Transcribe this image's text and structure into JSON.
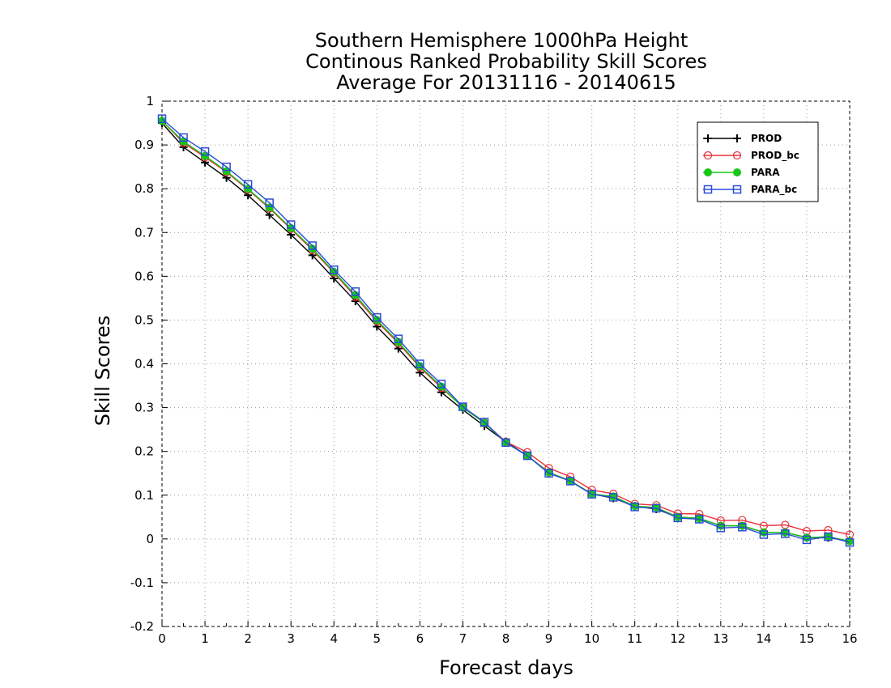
{
  "chart_data": {
    "type": "line",
    "title": [
      "Southern Hemisphere 1000hPa Height",
      "Continous Ranked Probability Skill Scores",
      "Average For 20131116 - 20140615"
    ],
    "xlabel": "Forecast days",
    "ylabel": "Skill Scores",
    "xlim": [
      0,
      16
    ],
    "ylim": [
      -0.2,
      1
    ],
    "xticks": [
      "0",
      "1",
      "2",
      "3",
      "4",
      "5",
      "6",
      "7",
      "8",
      "9",
      "10",
      "11",
      "12",
      "13",
      "14",
      "15",
      "16"
    ],
    "yticks": [
      "-0.2",
      "-0.1",
      "0",
      "0.1",
      "0.2",
      "0.3",
      "0.4",
      "0.5",
      "0.6",
      "0.7",
      "0.8",
      "0.9",
      "1"
    ],
    "grid": true,
    "legend_position": "top-right",
    "x": [
      0,
      0.5,
      1,
      1.5,
      2,
      2.5,
      3,
      3.5,
      4,
      4.5,
      5,
      5.5,
      6,
      6.5,
      7,
      7.5,
      8,
      8.5,
      9,
      9.5,
      10,
      10.5,
      11,
      11.5,
      12,
      12.5,
      13,
      13.5,
      14,
      14.5,
      15,
      15.5,
      16
    ],
    "series": [
      {
        "name": "PROD",
        "color": "#000000",
        "marker": "plus",
        "values": [
          0.95,
          0.895,
          0.86,
          0.825,
          0.785,
          0.74,
          0.695,
          0.648,
          0.595,
          0.543,
          0.485,
          0.435,
          0.38,
          0.335,
          0.295,
          0.258,
          0.222,
          0.19,
          0.152,
          0.132,
          0.103,
          0.093,
          0.075,
          0.068,
          0.05,
          0.047,
          0.03,
          0.03,
          0.015,
          0.015,
          0.003,
          0.003,
          -0.005
        ]
      },
      {
        "name": "PROD_bc",
        "color": "#e8313a",
        "marker": "circle",
        "values": [
          0.955,
          0.905,
          0.872,
          0.838,
          0.798,
          0.755,
          0.708,
          0.66,
          0.608,
          0.553,
          0.497,
          0.447,
          0.392,
          0.345,
          0.302,
          0.265,
          0.222,
          0.198,
          0.162,
          0.142,
          0.112,
          0.103,
          0.08,
          0.077,
          0.058,
          0.057,
          0.042,
          0.043,
          0.03,
          0.032,
          0.018,
          0.02,
          0.01
        ]
      },
      {
        "name": "PARA",
        "color": "#16c716",
        "marker": "filled-circle",
        "values": [
          0.955,
          0.908,
          0.875,
          0.84,
          0.8,
          0.757,
          0.71,
          0.663,
          0.61,
          0.557,
          0.5,
          0.45,
          0.395,
          0.348,
          0.3,
          0.265,
          0.22,
          0.19,
          0.152,
          0.133,
          0.103,
          0.097,
          0.075,
          0.072,
          0.05,
          0.047,
          0.03,
          0.03,
          0.015,
          0.015,
          0.003,
          0.005,
          -0.005
        ]
      },
      {
        "name": "PARA_bc",
        "color": "#2b4bd8",
        "marker": "square",
        "values": [
          0.96,
          0.917,
          0.885,
          0.85,
          0.81,
          0.768,
          0.718,
          0.67,
          0.615,
          0.565,
          0.506,
          0.457,
          0.4,
          0.354,
          0.302,
          0.267,
          0.22,
          0.19,
          0.15,
          0.132,
          0.102,
          0.095,
          0.073,
          0.07,
          0.048,
          0.045,
          0.025,
          0.027,
          0.01,
          0.012,
          -0.002,
          0.005,
          -0.008
        ]
      }
    ]
  }
}
